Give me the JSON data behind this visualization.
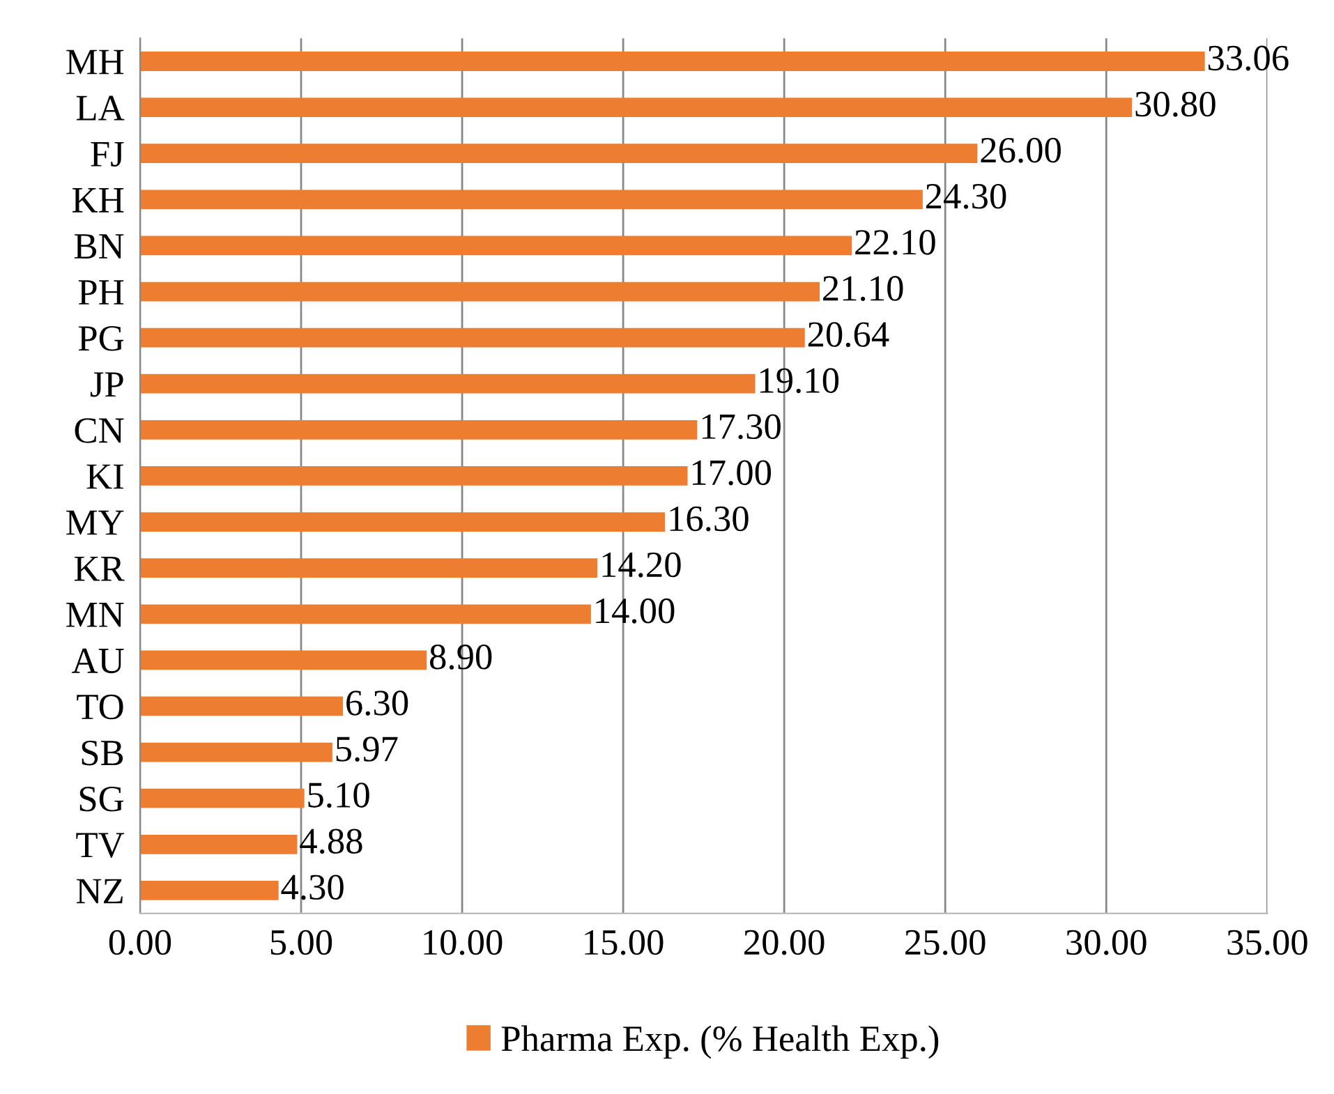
{
  "chart_data": {
    "type": "bar",
    "orientation": "horizontal",
    "categories": [
      "MH",
      "LA",
      "FJ",
      "KH",
      "BN",
      "PH",
      "PG",
      "JP",
      "CN",
      "KI",
      "MY",
      "KR",
      "MN",
      "AU",
      "TO",
      "SB",
      "SG",
      "TV",
      "NZ"
    ],
    "series": [
      {
        "name": "Pharma Exp. (% Health Exp.)",
        "color": "#ed7d31",
        "values": [
          33.06,
          30.8,
          26.0,
          24.3,
          22.1,
          21.1,
          20.64,
          19.1,
          17.3,
          17.0,
          16.3,
          14.2,
          14.0,
          8.9,
          6.3,
          5.97,
          5.1,
          4.88,
          4.3
        ],
        "value_labels": [
          "33.06",
          "30.80",
          "26.00",
          "24.30",
          "22.10",
          "21.10",
          "20.64",
          "19.10",
          "17.30",
          "17.00",
          "16.30",
          "14.20",
          "14.00",
          "8.90",
          "6.30",
          "5.97",
          "5.10",
          "4.88",
          "4.30"
        ]
      }
    ],
    "xlim": [
      0,
      35
    ],
    "xticks": [
      {
        "value": 0,
        "label": "0.00"
      },
      {
        "value": 5,
        "label": "5.00"
      },
      {
        "value": 10,
        "label": "10.00"
      },
      {
        "value": 15,
        "label": "15.00"
      },
      {
        "value": 20,
        "label": "20.00"
      },
      {
        "value": 25,
        "label": "25.00"
      },
      {
        "value": 30,
        "label": "30.00"
      },
      {
        "value": 35,
        "label": "35.00"
      }
    ],
    "grid": "x",
    "legend": "bottom"
  }
}
